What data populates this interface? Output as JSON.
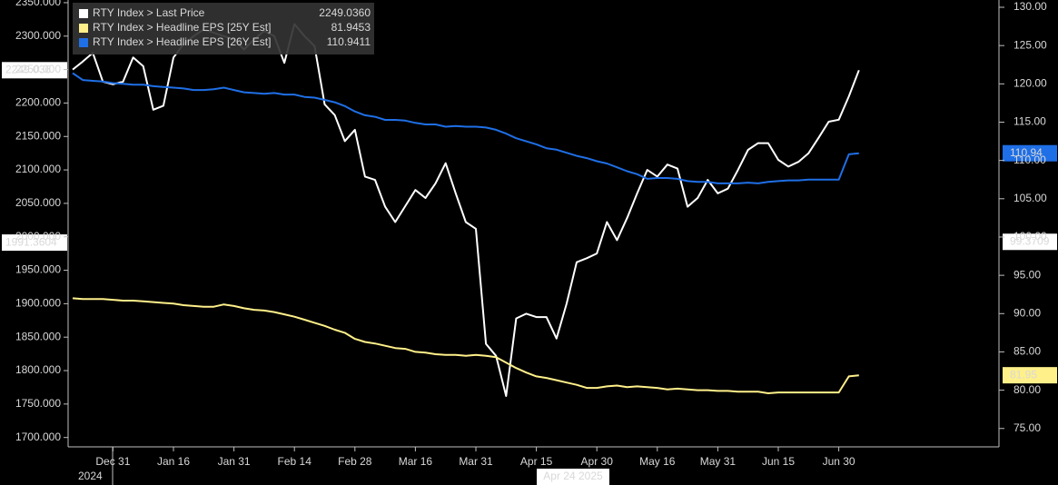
{
  "chart_data": {
    "type": "line",
    "categories": [
      null,
      null,
      null,
      null,
      "Dec 31",
      null,
      null,
      null,
      null,
      null,
      "Jan 16",
      null,
      null,
      null,
      null,
      null,
      "Jan 31",
      null,
      null,
      null,
      null,
      null,
      "Feb 14",
      null,
      null,
      null,
      null,
      null,
      "Feb 28",
      null,
      null,
      null,
      null,
      null,
      "Mar 16",
      null,
      null,
      null,
      null,
      null,
      "Mar 31",
      null,
      null,
      null,
      null,
      null,
      "Apr 15",
      null,
      null,
      null,
      null,
      null,
      "Apr 30",
      null,
      null,
      null,
      null,
      null,
      "May 16",
      null,
      null,
      null,
      null,
      null,
      "May 31",
      null,
      null,
      null,
      null,
      null,
      "Jun 15",
      null,
      null,
      null,
      null,
      null,
      "Jun 30",
      null,
      null
    ],
    "year_label": "2024",
    "series": [
      {
        "name": "RTY Index > Last Price",
        "legend_value": "2249.0360",
        "color": "#ffffff",
        "axis": "y",
        "last_value_label": 2249.036,
        "values": [
          2250,
          2262,
          2275,
          2232,
          2228,
          2232,
          2268,
          2255,
          2190,
          2196,
          2268,
          2288,
          2300,
          2310,
          2305,
          2300,
          2295,
          2280,
          2295,
          2308,
          2300,
          2260,
          2318,
          2300,
          2285,
          2198,
          2182,
          2143,
          2160,
          2090,
          2085,
          2045,
          2022,
          2046,
          2070,
          2058,
          2080,
          2110,
          2065,
          2022,
          2012,
          1840,
          1822,
          1762,
          1878,
          1885,
          1880,
          1880,
          1848,
          1900,
          1962,
          1968,
          1975,
          2022,
          1995,
          2028,
          2065,
          2100,
          2090,
          2108,
          2102,
          2045,
          2058,
          2085,
          2065,
          2072,
          2100,
          2130,
          2140,
          2140,
          2115,
          2105,
          2112,
          2125,
          2148,
          2172,
          2175,
          2210,
          2249.036
        ]
      },
      {
        "name": "RTY Index > Headline EPS [25Y Est]",
        "legend_value": 81.9453,
        "color": "#fff08a",
        "axis": "y2",
        "last_value_label": 81.95,
        "values": [
          92.0,
          91.9,
          91.9,
          91.9,
          91.8,
          91.7,
          91.7,
          91.6,
          91.5,
          91.4,
          91.3,
          91.1,
          91.0,
          90.9,
          90.9,
          91.2,
          91.0,
          90.7,
          90.5,
          90.4,
          90.2,
          89.9,
          89.6,
          89.2,
          88.8,
          88.4,
          87.9,
          87.5,
          86.7,
          86.3,
          86.1,
          85.8,
          85.5,
          85.4,
          85.0,
          84.9,
          84.7,
          84.6,
          84.6,
          84.5,
          84.6,
          84.5,
          84.3,
          83.6,
          82.9,
          82.3,
          81.8,
          81.6,
          81.3,
          81.0,
          80.7,
          80.3,
          80.3,
          80.5,
          80.6,
          80.4,
          80.5,
          80.4,
          80.3,
          80.1,
          80.2,
          80.1,
          80.0,
          80.0,
          79.9,
          79.9,
          79.8,
          79.8,
          79.8,
          79.6,
          79.7,
          79.7,
          79.7,
          79.7,
          79.7,
          79.7,
          79.7,
          81.8,
          81.9453
        ]
      },
      {
        "name": "RTY Index > Headline EPS [26Y Est]",
        "legend_value": 110.9411,
        "color": "#1f6fe6",
        "axis": "y2",
        "last_value_label": 110.94,
        "values": [
          121.4,
          120.5,
          120.4,
          120.3,
          120.1,
          120.0,
          119.9,
          119.9,
          119.7,
          119.6,
          119.5,
          119.4,
          119.2,
          119.2,
          119.3,
          119.5,
          119.2,
          118.9,
          118.8,
          118.7,
          118.8,
          118.6,
          118.6,
          118.3,
          118.2,
          117.9,
          117.6,
          117.1,
          116.4,
          115.9,
          115.7,
          115.3,
          115.3,
          115.2,
          114.9,
          114.7,
          114.7,
          114.4,
          114.5,
          114.4,
          114.4,
          114.3,
          114.0,
          113.5,
          112.9,
          112.5,
          112.1,
          111.6,
          111.4,
          111.0,
          110.6,
          110.3,
          109.9,
          109.6,
          109.1,
          108.6,
          108.2,
          107.6,
          107.7,
          107.7,
          107.6,
          107.3,
          107.2,
          107.2,
          107.0,
          107.0,
          107.0,
          107.1,
          107.0,
          107.2,
          107.3,
          107.4,
          107.4,
          107.5,
          107.5,
          107.5,
          107.5,
          110.8,
          110.9411
        ]
      }
    ],
    "ylim": [
      1686,
      2354
    ],
    "yticks": [
      {
        "value": 1700,
        "label": "1700.000"
      },
      {
        "value": 1750,
        "label": "1750.000"
      },
      {
        "value": 1800,
        "label": "1800.000"
      },
      {
        "value": 1850,
        "label": "1850.000"
      },
      {
        "value": 1900,
        "label": "1900.000"
      },
      {
        "value": 1950,
        "label": "1950.000"
      },
      {
        "value": 2000,
        "label": "2000.000"
      },
      {
        "value": 2050,
        "label": "2050.000"
      },
      {
        "value": 2100,
        "label": "2100.000"
      },
      {
        "value": 2150,
        "label": "2150.000"
      },
      {
        "value": 2200,
        "label": "2200.000"
      },
      {
        "value": 2250,
        "label": "2250.000"
      },
      {
        "value": 2300,
        "label": "2300.000"
      },
      {
        "value": 2350,
        "label": "2350.000"
      }
    ],
    "y2lim": [
      72.6,
      130.95
    ],
    "y2ticks": [
      {
        "value": 75,
        "label": "75.00"
      },
      {
        "value": 80,
        "label": "80.00"
      },
      {
        "value": 85,
        "label": "85.00"
      },
      {
        "value": 90,
        "label": "90.00"
      },
      {
        "value": 95,
        "label": "95.00"
      },
      {
        "value": 100,
        "label": "100.00"
      },
      {
        "value": 105,
        "label": "105.00"
      },
      {
        "value": 110,
        "label": "110.00"
      },
      {
        "value": 115,
        "label": "115.00"
      },
      {
        "value": 120,
        "label": "120.00"
      },
      {
        "value": 125,
        "label": "125.00"
      },
      {
        "value": 130,
        "label": "130.00"
      }
    ],
    "cursor": {
      "x_label": "Apr 24 2025",
      "y": 1991.3604,
      "y2": 99.3709
    },
    "grid": false
  }
}
